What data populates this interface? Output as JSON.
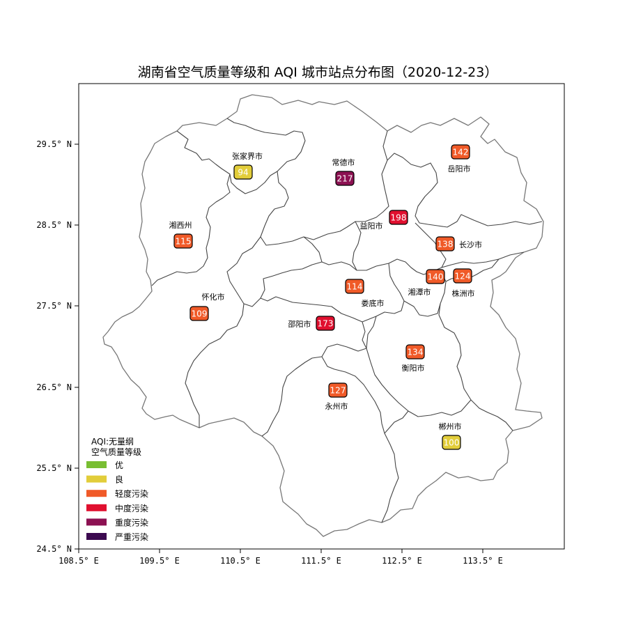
{
  "title": "湖南省空气质量等级和 AQI 城市站点分布图（2020-12-23）",
  "axes": {
    "x_ticks": [
      "108.5° E",
      "109.5° E",
      "110.5° E",
      "111.5° E",
      "112.5° E",
      "113.5° E"
    ],
    "y_ticks": [
      "29.5° N",
      "28.5° N",
      "27.5° N",
      "26.5° N",
      "25.5° N",
      "24.5° N"
    ]
  },
  "legend": {
    "title_line1": "AQI:无量纲",
    "title_line2": "空气质量等级",
    "items": [
      {
        "label": "优",
        "color": "#78be32"
      },
      {
        "label": "良",
        "color": "#e2cd3a"
      },
      {
        "label": "轻度污染",
        "color": "#f05a28"
      },
      {
        "label": "中度污染",
        "color": "#e0102f"
      },
      {
        "label": "重度污染",
        "color": "#8c1152"
      },
      {
        "label": "严重污染",
        "color": "#3c0a50"
      }
    ]
  },
  "cities": [
    {
      "name": "张家界市",
      "aqi": "94",
      "level": "良",
      "color": "#e2cd3a",
      "text_color": "#ffffff",
      "label_pos": "above"
    },
    {
      "name": "常德市",
      "aqi": "217",
      "level": "重度污染",
      "color": "#8c1152",
      "text_color": "#ffffff",
      "label_pos": "above"
    },
    {
      "name": "岳阳市",
      "aqi": "142",
      "level": "轻度污染",
      "color": "#f05a28",
      "text_color": "#ffffff",
      "label_pos": "below"
    },
    {
      "name": "湘西州",
      "aqi": "115",
      "level": "轻度污染",
      "color": "#f05a28",
      "text_color": "#ffffff",
      "label_pos": "above"
    },
    {
      "name": "益阳市",
      "aqi": "198",
      "level": "中度污染",
      "color": "#e0102f",
      "text_color": "#ffffff",
      "label_pos": "left-below"
    },
    {
      "name": "长沙市",
      "aqi": "138",
      "level": "轻度污染",
      "color": "#f05a28",
      "text_color": "#ffffff",
      "label_pos": "right"
    },
    {
      "name": "怀化市",
      "aqi": "109",
      "level": "轻度污染",
      "color": "#f05a28",
      "text_color": "#ffffff",
      "label_pos": "above-right"
    },
    {
      "name": "娄底市",
      "aqi": "114",
      "level": "轻度污染",
      "color": "#f05a28",
      "text_color": "#ffffff",
      "label_pos": "below-right"
    },
    {
      "name": "湘潭市",
      "aqi": "140",
      "level": "轻度污染",
      "color": "#f05a28",
      "text_color": "#ffffff",
      "label_pos": "below-left"
    },
    {
      "name": "株洲市",
      "aqi": "124",
      "level": "轻度污染",
      "color": "#f05a28",
      "text_color": "#ffffff",
      "label_pos": "below"
    },
    {
      "name": "邵阳市",
      "aqi": "173",
      "level": "中度污染",
      "color": "#e0102f",
      "text_color": "#ffffff",
      "label_pos": "left"
    },
    {
      "name": "衡阳市",
      "aqi": "134",
      "level": "轻度污染",
      "color": "#f05a28",
      "text_color": "#ffffff",
      "label_pos": "below"
    },
    {
      "name": "永州市",
      "aqi": "127",
      "level": "轻度污染",
      "color": "#f05a28",
      "text_color": "#ffffff",
      "label_pos": "below"
    },
    {
      "name": "郴州市",
      "aqi": "100",
      "level": "良",
      "color": "#e2cd3a",
      "text_color": "#ffffff",
      "label_pos": "above"
    }
  ]
}
